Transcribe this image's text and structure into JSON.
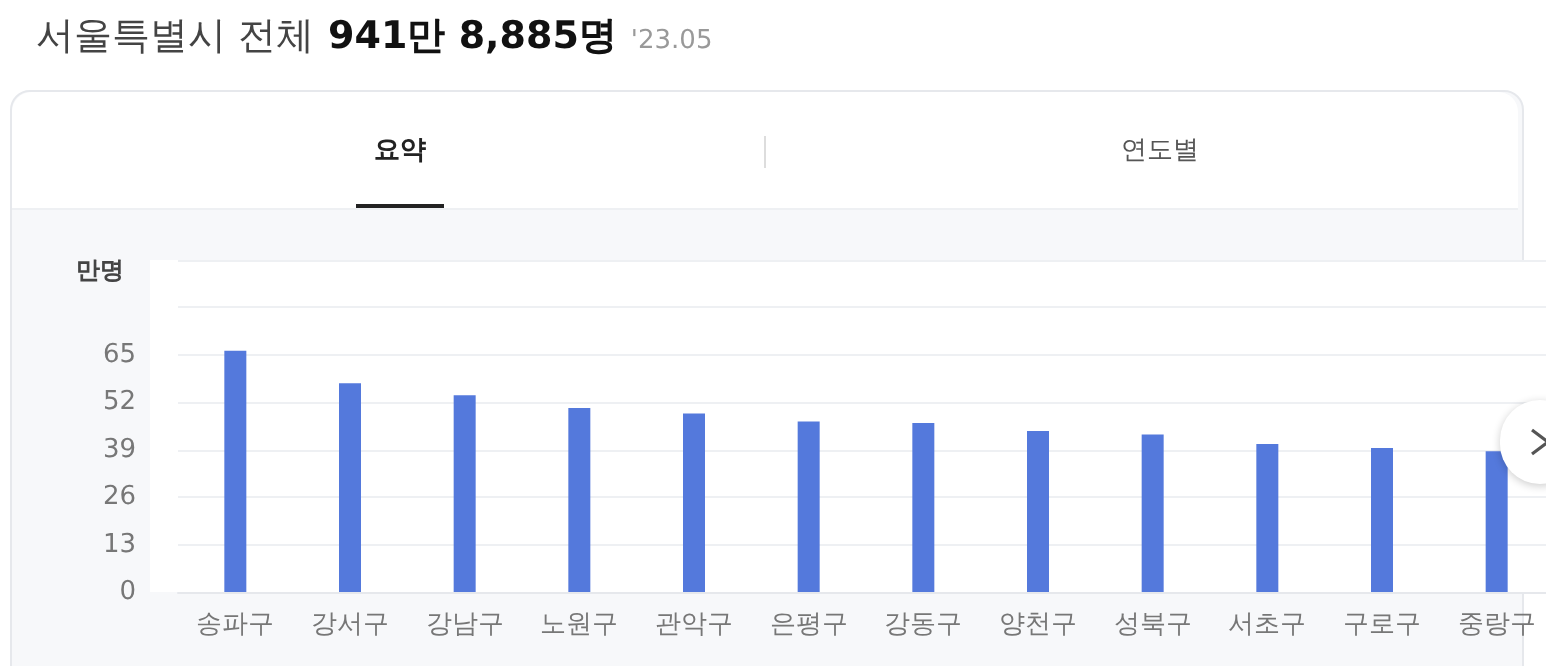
{
  "chart_data": {
    "type": "bar",
    "title": "서울특별시 전체",
    "subtitle": "941만 8,885명",
    "ylabel": "만명",
    "annotations": [
      "'23.05",
      "요약",
      "연도별"
    ],
    "categories": [
      "송파구",
      "강서구",
      "강남구",
      "노원구",
      "관악구",
      "은평구",
      "강동구",
      "양천구",
      "성북구",
      "서초구",
      "구로구",
      "중랑구"
    ],
    "values": [
      66.1,
      57.2,
      53.9,
      50.4,
      48.9,
      46.7,
      46.3,
      44.1,
      43.2,
      40.6,
      39.5,
      38.6
    ],
    "color": "#5479dc",
    "ylim": [
      0,
      91
    ],
    "yticks": [
      0,
      13,
      26,
      39,
      52,
      65,
      {
        "value": 78,
        "label": null
      },
      {
        "value": 91,
        "label": null
      }
    ],
    "grid": "y"
  }
}
